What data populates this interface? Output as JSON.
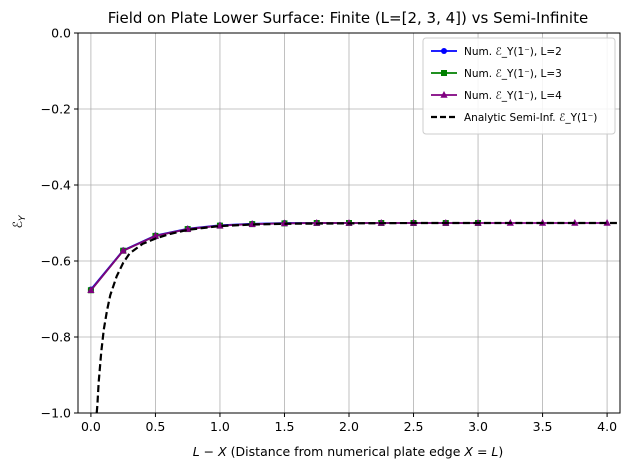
{
  "chart_data": {
    "type": "line",
    "title": "Field on Plate Lower Surface: Finite (L=[2, 3, 4]) vs Semi-Infinite",
    "xlabel": "L − X (Distance from numerical plate edge X = L)",
    "ylabel": "ℰ_Y",
    "xlim": [
      -0.1,
      4.1
    ],
    "ylim": [
      -1.0,
      0.0
    ],
    "x_ticks": [
      "0.0",
      "0.5",
      "1.0",
      "1.5",
      "2.0",
      "2.5",
      "3.0",
      "3.5",
      "4.0"
    ],
    "x_tick_values": [
      0.0,
      0.5,
      1.0,
      1.5,
      2.0,
      2.5,
      3.0,
      3.5,
      4.0
    ],
    "y_ticks": [
      "0.0",
      "−0.2",
      "−0.4",
      "−0.6",
      "−0.8",
      "−1.0"
    ],
    "y_tick_values": [
      0.0,
      -0.2,
      -0.4,
      -0.6,
      -0.8,
      -1.0
    ],
    "grid": true,
    "legend_position": "top-right",
    "series": [
      {
        "name": "Num. ℰ_Y(1⁻),  L=2",
        "color": "#0000ff",
        "marker": "circle",
        "x": [
          0.0,
          0.25,
          0.5,
          0.75,
          1.0,
          1.25,
          1.5,
          1.75,
          2.0
        ],
        "y": [
          -0.675,
          -0.572,
          -0.533,
          -0.515,
          -0.506,
          -0.502,
          -0.5,
          -0.5,
          -0.5
        ]
      },
      {
        "name": "Num. ℰ_Y(1⁻),  L=3",
        "color": "#008000",
        "marker": "square",
        "x": [
          0.0,
          0.25,
          0.5,
          0.75,
          1.0,
          1.25,
          1.5,
          1.75,
          2.0,
          2.25,
          2.5,
          2.75,
          3.0
        ],
        "y": [
          -0.677,
          -0.573,
          -0.534,
          -0.516,
          -0.507,
          -0.503,
          -0.501,
          -0.5,
          -0.5,
          -0.5,
          -0.5,
          -0.5,
          -0.5
        ]
      },
      {
        "name": "Num. ℰ_Y(1⁻),  L=4",
        "color": "#800080",
        "marker": "triangle",
        "x": [
          0.0,
          0.25,
          0.5,
          0.75,
          1.0,
          1.25,
          1.5,
          1.75,
          2.0,
          2.25,
          2.5,
          2.75,
          3.0,
          3.25,
          3.5,
          3.75,
          4.0
        ],
        "y": [
          -0.677,
          -0.573,
          -0.534,
          -0.516,
          -0.507,
          -0.503,
          -0.501,
          -0.5,
          -0.5,
          -0.5,
          -0.5,
          -0.5,
          -0.5,
          -0.5,
          -0.5,
          -0.5,
          -0.5
        ]
      },
      {
        "name": "Analytic Semi-Inf. ℰ_Y(1⁻)",
        "color": "#000000",
        "marker": "none",
        "dashed": true,
        "x": [
          0.045,
          0.05,
          0.06,
          0.08,
          0.1,
          0.125,
          0.15,
          0.2,
          0.25,
          0.3,
          0.4,
          0.5,
          0.6,
          0.75,
          1.0,
          1.25,
          1.5,
          2.0,
          2.5,
          3.0,
          3.5,
          4.0,
          4.1
        ],
        "y": [
          -1.0,
          -0.98,
          -0.92,
          -0.84,
          -0.78,
          -0.73,
          -0.69,
          -0.64,
          -0.605,
          -0.58,
          -0.555,
          -0.541,
          -0.53,
          -0.518,
          -0.508,
          -0.504,
          -0.502,
          -0.501,
          -0.5,
          -0.5,
          -0.5,
          -0.5,
          -0.5
        ]
      }
    ]
  }
}
